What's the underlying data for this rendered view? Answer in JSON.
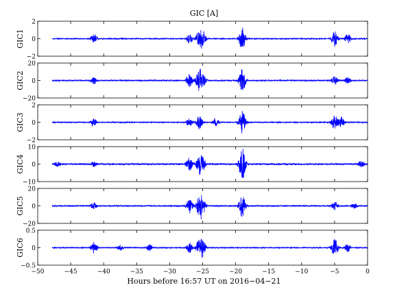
{
  "chart_data": {
    "type": "line",
    "title": "GIC [A]",
    "xlabel": "Hours before  16:57 UT on 2016−04−21",
    "xlim": [
      -50,
      0
    ],
    "xticks": [
      "−50",
      "−45",
      "−40",
      "−35",
      "−30",
      "−25",
      "−20",
      "−15",
      "−10",
      "−5",
      "0"
    ],
    "line_color": "#0000ff",
    "panels": [
      {
        "ylabel": "GIC1",
        "ylim": [
          -2,
          2
        ],
        "yticks": [
          "2",
          "0",
          "−2"
        ],
        "noise": 0.05,
        "events": [
          [
            -41.5,
            0.55
          ],
          [
            -27,
            0.5
          ],
          [
            -25.5,
            1.0
          ],
          [
            -25,
            0.85
          ],
          [
            -19,
            1.3
          ],
          [
            -5,
            0.9
          ],
          [
            -3,
            0.55
          ]
        ]
      },
      {
        "ylabel": "GIC2",
        "ylim": [
          -20,
          20
        ],
        "yticks": [
          "20",
          "0",
          "−20"
        ],
        "noise": 0.6,
        "events": [
          [
            -41.5,
            4
          ],
          [
            -27,
            8
          ],
          [
            -25.5,
            12
          ],
          [
            -25,
            9
          ],
          [
            -19,
            14
          ],
          [
            -5,
            5
          ],
          [
            -3,
            4
          ]
        ]
      },
      {
        "ylabel": "GIC3",
        "ylim": [
          -2,
          2
        ],
        "yticks": [
          "2",
          "0",
          "−2"
        ],
        "noise": 0.05,
        "events": [
          [
            -41.5,
            0.5
          ],
          [
            -27,
            0.5
          ],
          [
            -25.5,
            0.8
          ],
          [
            -23,
            0.5
          ],
          [
            -19,
            1.3
          ],
          [
            -5,
            0.8
          ],
          [
            -4,
            0.6
          ]
        ]
      },
      {
        "ylabel": "GIC4",
        "ylim": [
          -10,
          10
        ],
        "yticks": [
          "10",
          "0",
          "−10"
        ],
        "noise": 0.4,
        "events": [
          [
            -47,
            1.5
          ],
          [
            -41.5,
            1.5
          ],
          [
            -27,
            4
          ],
          [
            -25.5,
            5
          ],
          [
            -25,
            4
          ],
          [
            -19,
            9.5
          ],
          [
            -1,
            2
          ]
        ]
      },
      {
        "ylabel": "GIC5",
        "ylim": [
          -20,
          20
        ],
        "yticks": [
          "20",
          "0",
          "−20"
        ],
        "noise": 0.6,
        "events": [
          [
            -41.5,
            4
          ],
          [
            -27,
            9
          ],
          [
            -25.5,
            12
          ],
          [
            -25,
            9
          ],
          [
            -19,
            14
          ],
          [
            -5,
            5
          ],
          [
            -2,
            3
          ]
        ]
      },
      {
        "ylabel": "GIC6",
        "ylim": [
          -0.5,
          0.5
        ],
        "yticks": [
          "0.5",
          "0",
          "−0.5"
        ],
        "noise": 0.012,
        "events": [
          [
            -41.5,
            0.17
          ],
          [
            -37.5,
            0.08
          ],
          [
            -33,
            0.1
          ],
          [
            -27,
            0.15
          ],
          [
            -25.5,
            0.25
          ],
          [
            -25,
            0.2
          ],
          [
            -5,
            0.28
          ],
          [
            -3,
            0.12
          ]
        ]
      }
    ]
  }
}
